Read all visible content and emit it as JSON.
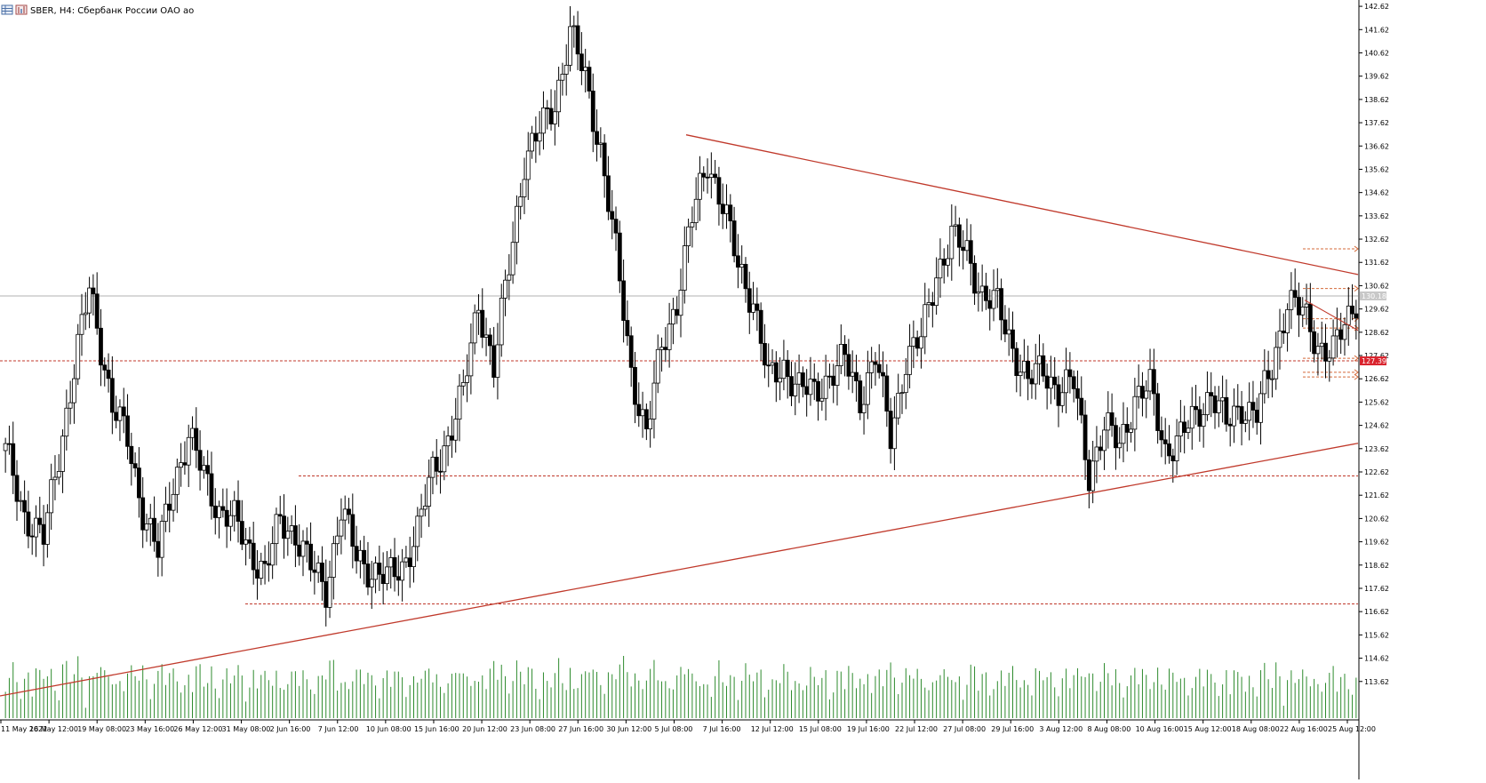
{
  "window": {
    "symbol_title": "SBER, H4:  Сбербанк России ОАО ао",
    "icons": [
      "chart-grid-icon",
      "chart-bars-icon"
    ]
  },
  "colors": {
    "bull": "#ffffff",
    "bear": "#000000",
    "wick": "#000000",
    "volume": "#2e8b2e",
    "trendline": "#c0392b",
    "level_line": "#c0392b",
    "bid_line": "#b0b0b0",
    "price_badge": "#d9232d"
  },
  "chart_data": {
    "type": "candlestick",
    "symbol": "SBER",
    "timeframe": "H4",
    "y_ticks": [
      "142.62",
      "141.62",
      "140.62",
      "139.62",
      "138.62",
      "137.62",
      "136.62",
      "135.62",
      "134.62",
      "133.62",
      "132.62",
      "131.62",
      "130.62",
      "129.62",
      "128.62",
      "127.62",
      "126.62",
      "125.62",
      "124.62",
      "123.62",
      "122.62",
      "121.62",
      "120.62",
      "119.62",
      "118.62",
      "117.62",
      "116.62",
      "115.62",
      "114.62",
      "113.62"
    ],
    "ylim": [
      113.0,
      142.7
    ],
    "x_ticks": [
      "11 May 2022",
      "16 May 12:00",
      "19 May 08:00",
      "23 May 16:00",
      "26 May 12:00",
      "31 May 08:00",
      "2 Jun 16:00",
      "7 Jun 12:00",
      "10 Jun 08:00",
      "15 Jun 16:00",
      "20 Jun 12:00",
      "23 Jun 08:00",
      "27 Jun 16:00",
      "30 Jun 12:00",
      "5 Jul 08:00",
      "7 Jul 16:00",
      "12 Jul 12:00",
      "15 Jul 08:00",
      "19 Jul 16:00",
      "22 Jul 12:00",
      "27 Jul 08:00",
      "29 Jul 16:00",
      "3 Aug 12:00",
      "8 Aug 08:00",
      "10 Aug 16:00",
      "15 Aug 12:00",
      "18 Aug 08:00",
      "22 Aug 16:00",
      "25 Aug 12:00"
    ],
    "current_price_label": "127.39",
    "bid_price_label": "130.18",
    "anchors": [
      [
        0,
        123.5
      ],
      [
        5,
        120.8
      ],
      [
        10,
        119.7
      ],
      [
        14,
        123.4
      ],
      [
        18,
        127.0
      ],
      [
        22,
        130.5
      ],
      [
        24,
        129.0
      ],
      [
        28,
        125.4
      ],
      [
        32,
        124.0
      ],
      [
        36,
        121.0
      ],
      [
        40,
        119.1
      ],
      [
        44,
        122.2
      ],
      [
        48,
        124.1
      ],
      [
        52,
        122.5
      ],
      [
        56,
        121.0
      ],
      [
        60,
        120.5
      ],
      [
        64,
        119.3
      ],
      [
        68,
        118.3
      ],
      [
        72,
        120.5
      ],
      [
        76,
        120.0
      ],
      [
        80,
        118.5
      ],
      [
        84,
        117.6
      ],
      [
        88,
        121.0
      ],
      [
        92,
        119.0
      ],
      [
        96,
        118.4
      ],
      [
        100,
        118.0
      ],
      [
        104,
        118.6
      ],
      [
        108,
        120.1
      ],
      [
        112,
        122.6
      ],
      [
        116,
        124.1
      ],
      [
        120,
        126.0
      ],
      [
        124,
        130.0
      ],
      [
        128,
        127.0
      ],
      [
        132,
        131.5
      ],
      [
        136,
        136.0
      ],
      [
        140,
        137.2
      ],
      [
        144,
        138.5
      ],
      [
        148,
        141.5
      ],
      [
        152,
        139.5
      ],
      [
        156,
        136.5
      ],
      [
        160,
        132.0
      ],
      [
        164,
        127.0
      ],
      [
        168,
        124.2
      ],
      [
        172,
        128.0
      ],
      [
        176,
        130.0
      ],
      [
        180,
        133.5
      ],
      [
        184,
        136.1
      ],
      [
        188,
        134.0
      ],
      [
        192,
        131.5
      ],
      [
        196,
        130.0
      ],
      [
        200,
        126.5
      ],
      [
        204,
        127.2
      ],
      [
        208,
        126.2
      ],
      [
        212,
        126.0
      ],
      [
        216,
        126.8
      ],
      [
        220,
        127.4
      ],
      [
        224,
        125.8
      ],
      [
        228,
        127.6
      ],
      [
        232,
        124.1
      ],
      [
        236,
        127.5
      ],
      [
        240,
        128.3
      ],
      [
        244,
        131.2
      ],
      [
        248,
        132.7
      ],
      [
        252,
        132.0
      ],
      [
        256,
        130.3
      ],
      [
        260,
        129.7
      ],
      [
        264,
        128.0
      ],
      [
        268,
        126.5
      ],
      [
        272,
        127.0
      ],
      [
        276,
        126.2
      ],
      [
        280,
        126.4
      ],
      [
        284,
        122.6
      ],
      [
        288,
        124.5
      ],
      [
        292,
        123.8
      ],
      [
        296,
        125.8
      ],
      [
        300,
        126.2
      ],
      [
        304,
        123.6
      ],
      [
        308,
        124.1
      ],
      [
        312,
        125.0
      ],
      [
        316,
        126.1
      ],
      [
        320,
        124.6
      ],
      [
        324,
        125.5
      ],
      [
        328,
        125.1
      ],
      [
        332,
        127.1
      ],
      [
        336,
        130.1
      ],
      [
        340,
        129.4
      ],
      [
        344,
        128.1
      ],
      [
        348,
        127.8
      ],
      [
        352,
        129.2
      ],
      [
        354,
        130.1
      ]
    ],
    "volume_baseline_hint": "volume histogram at bottom of chart (unlabeled)",
    "grid": false
  }
}
